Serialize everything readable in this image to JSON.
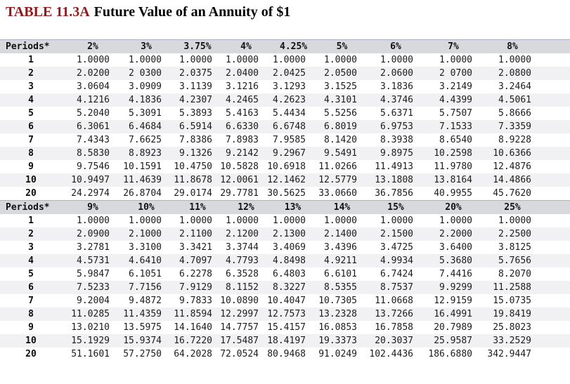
{
  "title": {
    "label": "TABLE 11.3A",
    "text": "Future Value of an Annuity of $1"
  },
  "colors": {
    "title_accent": "#8e1b1b",
    "title_text": "#000000",
    "header_bg": "#d8d9dd",
    "stripe_bg": "#f1f1f4",
    "header_border": "#a8b2c6"
  },
  "table": {
    "sections": [
      {
        "headers": [
          "Periods*",
          "2%",
          "3%",
          "3.75%",
          "4%",
          "4.25%",
          "5%",
          "6%",
          "7%",
          "8%"
        ],
        "rows": [
          {
            "period": "1",
            "values": [
              "1.0000",
              "1.0000",
              "1.0000",
              "1.0000",
              "1.0000",
              "1.0000",
              "1.0000",
              "1.0000",
              "1.0000"
            ]
          },
          {
            "period": "2",
            "values": [
              "2.0200",
              "2 0300",
              "2.0375",
              "2.0400",
              "2.0425",
              "2.0500",
              "2.0600",
              "2 0700",
              "2.0800"
            ]
          },
          {
            "period": "3",
            "values": [
              "3.0604",
              "3.0909",
              "3.1139",
              "3.1216",
              "3.1293",
              "3.1525",
              "3.1836",
              "3.2149",
              "3.2464"
            ]
          },
          {
            "period": "4",
            "values": [
              "4.1216",
              "4.1836",
              "4.2307",
              "4.2465",
              "4.2623",
              "4.3101",
              "4.3746",
              "4.4399",
              "4.5061"
            ]
          },
          {
            "period": "5",
            "values": [
              "5.2040",
              "5.3091",
              "5.3893",
              "5.4163",
              "5.4434",
              "5.5256",
              "5.6371",
              "5.7507",
              "5.8666"
            ]
          },
          {
            "period": "6",
            "values": [
              "6.3061",
              "6.4684",
              "6.5914",
              "6.6330",
              "6.6748",
              "6.8019",
              "6.9753",
              "7.1533",
              "7.3359"
            ]
          },
          {
            "period": "7",
            "values": [
              "7.4343",
              "7.6625",
              "7.8386",
              "7.8983",
              "7.9585",
              "8.1420",
              "8.3938",
              "8.6540",
              "8.9228"
            ]
          },
          {
            "period": "8",
            "values": [
              "8.5830",
              "8.8923",
              "9.1326",
              "9.2142",
              "9.2967",
              "9.5491",
              "9.8975",
              "10.2598",
              "10.6366"
            ]
          },
          {
            "period": "9",
            "values": [
              "9.7546",
              "10.1591",
              "10.4750",
              "10.5828",
              "10.6918",
              "11.0266",
              "11.4913",
              "11.9780",
              "12.4876"
            ]
          },
          {
            "period": "10",
            "values": [
              "10.9497",
              "11.4639",
              "11.8678",
              "12.0061",
              "12.1462",
              "12.5779",
              "13.1808",
              "13.8164",
              "14.4866"
            ]
          },
          {
            "period": "20",
            "values": [
              "24.2974",
              "26.8704",
              "29.0174",
              "29.7781",
              "30.5625",
              "33.0660",
              "36.7856",
              "40.9955",
              "45.7620"
            ]
          }
        ]
      },
      {
        "headers": [
          "Periods*",
          "9%",
          "10%",
          "11%",
          "12%",
          "13%",
          "14%",
          "15%",
          "20%",
          "25%"
        ],
        "rows": [
          {
            "period": "1",
            "values": [
              "1.0000",
              "1.0000",
              "1.0000",
              "1.0000",
              "1.0000",
              "1.0000",
              "1.0000",
              "1.0000",
              "1.0000"
            ]
          },
          {
            "period": "2",
            "values": [
              "2.0900",
              "2.1000",
              "2.1100",
              "2.1200",
              "2.1300",
              "2.1400",
              "2.1500",
              "2.2000",
              "2.2500"
            ]
          },
          {
            "period": "3",
            "values": [
              "3.2781",
              "3.3100",
              "3.3421",
              "3.3744",
              "3.4069",
              "3.4396",
              "3.4725",
              "3.6400",
              "3.8125"
            ]
          },
          {
            "period": "4",
            "values": [
              "4.5731",
              "4.6410",
              "4.7097",
              "4.7793",
              "4.8498",
              "4.9211",
              "4.9934",
              "5.3680",
              "5.7656"
            ]
          },
          {
            "period": "5",
            "values": [
              "5.9847",
              "6.1051",
              "6.2278",
              "6.3528",
              "6.4803",
              "6.6101",
              "6.7424",
              "7.4416",
              "8.2070"
            ]
          },
          {
            "period": "6",
            "values": [
              "7.5233",
              "7.7156",
              "7.9129",
              "8.1152",
              "8.3227",
              "8.5355",
              "8.7537",
              "9.9299",
              "11.2588"
            ]
          },
          {
            "period": "7",
            "values": [
              "9.2004",
              "9.4872",
              "9.7833",
              "10.0890",
              "10.4047",
              "10.7305",
              "11.0668",
              "12.9159",
              "15.0735"
            ]
          },
          {
            "period": "8",
            "values": [
              "11.0285",
              "11.4359",
              "11.8594",
              "12.2997",
              "12.7573",
              "13.2328",
              "13.7266",
              "16.4991",
              "19.8419"
            ]
          },
          {
            "period": "9",
            "values": [
              "13.0210",
              "13.5975",
              "14.1640",
              "14.7757",
              "15.4157",
              "16.0853",
              "16.7858",
              "20.7989",
              "25.8023"
            ]
          },
          {
            "period": "10",
            "values": [
              "15.1929",
              "15.9374",
              "16.7220",
              "17.5487",
              "18.4197",
              "19.3373",
              "20.3037",
              "25.9587",
              "33.2529"
            ]
          },
          {
            "period": "20",
            "values": [
              "51.1601",
              "57.2750",
              "64.2028",
              "72.0524",
              "80.9468",
              "91.0249",
              "102.4436",
              "186.6880",
              "342.9447"
            ]
          }
        ]
      }
    ]
  }
}
